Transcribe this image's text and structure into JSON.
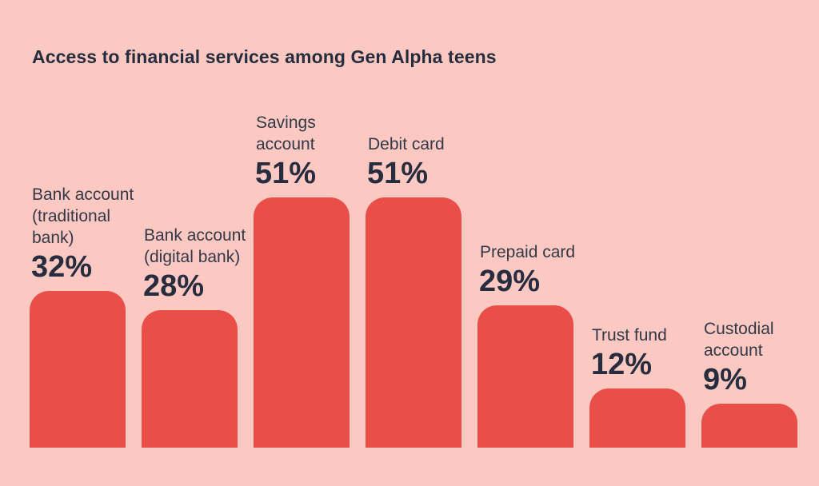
{
  "title": "Access to financial services among Gen Alpha teens",
  "colors": {
    "background": "#fbc9c2",
    "bar": "#e94e48",
    "title_text": "#262d3f",
    "label_text": "#323848",
    "value_text": "#272d3e"
  },
  "chart_data": {
    "type": "bar",
    "title": "Access to financial services among Gen Alpha teens",
    "xlabel": "",
    "ylabel": "",
    "unit": "%",
    "ylim": [
      0,
      51
    ],
    "grid": false,
    "legend": "none",
    "axes_shown": false,
    "value_labels_shown": true,
    "categories": [
      "Bank account (traditional bank)",
      "Bank account (digital bank)",
      "Savings account",
      "Debit card",
      "Prepaid card",
      "Trust fund",
      "Custodial account"
    ],
    "values": [
      32,
      28,
      51,
      51,
      29,
      12,
      9
    ],
    "bars": [
      {
        "label": "Bank account\n(traditional\nbank)",
        "value": 32,
        "value_label": "32%"
      },
      {
        "label": "Bank account\n(digital bank)",
        "value": 28,
        "value_label": "28%"
      },
      {
        "label": "Savings\naccount",
        "value": 51,
        "value_label": "51%"
      },
      {
        "label": "Debit card",
        "value": 51,
        "value_label": "51%"
      },
      {
        "label": "Prepaid card",
        "value": 29,
        "value_label": "29%"
      },
      {
        "label": "Trust fund",
        "value": 12,
        "value_label": "12%"
      },
      {
        "label": "Custodial\naccount",
        "value": 9,
        "value_label": "9%"
      }
    ]
  }
}
